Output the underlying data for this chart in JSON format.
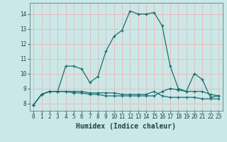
{
  "title": "",
  "xlabel": "Humidex (Indice chaleur)",
  "xlim": [
    -0.5,
    23.5
  ],
  "ylim": [
    7.5,
    14.75
  ],
  "xticks": [
    0,
    1,
    2,
    3,
    4,
    5,
    6,
    7,
    8,
    9,
    10,
    11,
    12,
    13,
    14,
    15,
    16,
    17,
    18,
    19,
    20,
    21,
    22,
    23
  ],
  "yticks": [
    8,
    9,
    10,
    11,
    12,
    13,
    14
  ],
  "bg_color": "#cbe8e8",
  "grid_color": "#e8b8b8",
  "line_color": "#1a6e6e",
  "line1_x": [
    0,
    1,
    2,
    3,
    4,
    5,
    6,
    7,
    8,
    9,
    10,
    11,
    12,
    13,
    14,
    15,
    16,
    17,
    18,
    19,
    20,
    21,
    22,
    23
  ],
  "line1_y": [
    7.9,
    8.6,
    8.8,
    8.8,
    10.5,
    10.5,
    10.3,
    9.4,
    9.8,
    11.5,
    12.5,
    12.9,
    14.2,
    14.0,
    14.0,
    14.1,
    13.2,
    10.5,
    9.0,
    8.8,
    10.0,
    9.6,
    8.4,
    8.5
  ],
  "line2_x": [
    0,
    1,
    2,
    3,
    4,
    5,
    6,
    7,
    8,
    9,
    10,
    11,
    12,
    13,
    14,
    15,
    16,
    17,
    18,
    19,
    20,
    21,
    22,
    23
  ],
  "line2_y": [
    7.9,
    8.6,
    8.8,
    8.8,
    8.8,
    8.8,
    8.8,
    8.7,
    8.7,
    8.7,
    8.7,
    8.6,
    8.6,
    8.6,
    8.6,
    8.8,
    8.5,
    8.4,
    8.4,
    8.4,
    8.4,
    8.3,
    8.3,
    8.3
  ],
  "line3_x": [
    0,
    1,
    2,
    3,
    4,
    5,
    6,
    7,
    8,
    9,
    10,
    11,
    12,
    13,
    14,
    15,
    16,
    17,
    18,
    19,
    20,
    21,
    22,
    23
  ],
  "line3_y": [
    7.9,
    8.6,
    8.8,
    8.8,
    8.8,
    8.7,
    8.7,
    8.6,
    8.6,
    8.5,
    8.5,
    8.5,
    8.5,
    8.5,
    8.5,
    8.5,
    8.8,
    9.0,
    8.9,
    8.8,
    8.8,
    8.8,
    8.6,
    8.5
  ]
}
